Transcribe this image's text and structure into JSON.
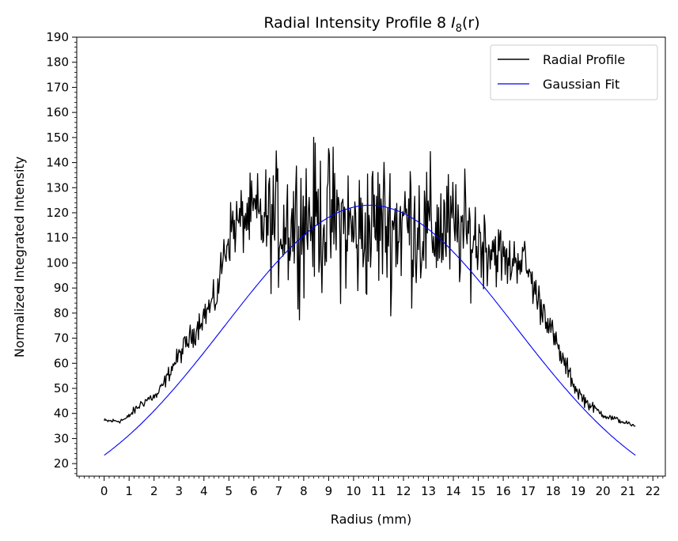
{
  "chart_data": {
    "type": "line",
    "title": "Radial Intensity Profile 8 I8(r)",
    "title_text": "Radial Intensity Profile 8 ",
    "title_symbol": "I",
    "title_subscript": "8",
    "title_arg": "(r)",
    "xlabel": "Radius (mm)",
    "ylabel": "Normalized Integrated Intensity",
    "xlim": [
      -1.1,
      22.5
    ],
    "ylim": [
      15,
      190
    ],
    "xticks": [
      "0",
      "1",
      "2",
      "3",
      "4",
      "5",
      "6",
      "7",
      "8",
      "9",
      "10",
      "11",
      "12",
      "13",
      "14",
      "15",
      "16",
      "17",
      "18",
      "19",
      "20",
      "21",
      "22"
    ],
    "yticks": [
      "20",
      "30",
      "40",
      "50",
      "60",
      "70",
      "80",
      "90",
      "100",
      "110",
      "120",
      "130",
      "140",
      "150",
      "160",
      "170",
      "180",
      "190"
    ],
    "legend_position": "top-right",
    "grid": false,
    "series": [
      {
        "name": "Radial Profile",
        "color": "#000000",
        "style": "noisy",
        "x": [
          0.0,
          0.3,
          0.6,
          0.9,
          1.2,
          1.5,
          1.8,
          2.1,
          2.4,
          2.7,
          3.0,
          3.3,
          3.6,
          3.9,
          4.2,
          4.5,
          4.8,
          5.1,
          5.4,
          5.7,
          6.0,
          6.3,
          6.6,
          6.9,
          7.2,
          7.5,
          7.8,
          8.1,
          8.4,
          8.7,
          9.0,
          9.3,
          9.6,
          9.9,
          10.2,
          10.5,
          10.8,
          11.1,
          11.4,
          11.7,
          12.0,
          12.3,
          12.6,
          12.9,
          13.2,
          13.5,
          13.8,
          14.1,
          14.4,
          14.7,
          15.0,
          15.3,
          15.6,
          15.9,
          16.2,
          16.5,
          16.8,
          17.1,
          17.4,
          17.7,
          18.0,
          18.3,
          18.6,
          18.9,
          19.2,
          19.5,
          19.8,
          20.1,
          20.4,
          20.7,
          21.0,
          21.3
        ],
        "values": [
          37,
          37,
          37,
          38,
          41,
          44,
          46,
          47,
          52,
          58,
          63,
          68,
          72,
          78,
          82,
          86,
          104,
          114,
          116,
          118,
          120,
          117,
          116,
          116,
          117,
          116,
          117,
          118,
          118,
          117,
          117,
          117,
          115,
          113,
          110,
          113,
          115,
          116,
          115,
          115,
          116,
          116,
          115,
          113,
          113,
          114,
          113,
          113,
          112,
          110,
          109,
          107,
          106,
          103,
          99,
          102,
          102,
          94,
          85,
          80,
          71,
          63,
          57,
          50,
          46,
          43,
          41,
          39,
          38,
          37,
          36,
          34
        ],
        "noise_amplitude": [
          1.5,
          1.5,
          1.5,
          1.5,
          2.5,
          3,
          3,
          3,
          4,
          5,
          6,
          7,
          8,
          8,
          10,
          10,
          14,
          18,
          20,
          20,
          22,
          28,
          34,
          38,
          40,
          42,
          42,
          42,
          42,
          42,
          42,
          42,
          42,
          42,
          42,
          42,
          42,
          42,
          42,
          42,
          42,
          42,
          42,
          40,
          40,
          38,
          36,
          34,
          32,
          30,
          28,
          24,
          22,
          18,
          16,
          15,
          14,
          12,
          12,
          10,
          8,
          7,
          6,
          5,
          4,
          3,
          2.5,
          2,
          2,
          1.5,
          1.5,
          1.5
        ]
      },
      {
        "name": "Gaussian Fit",
        "color": "#0000ff",
        "style": "smooth",
        "amplitude": 123,
        "center": 10.65,
        "sigma": 5.84,
        "baseline": 0,
        "x_range": [
          0,
          21.3
        ]
      }
    ]
  }
}
